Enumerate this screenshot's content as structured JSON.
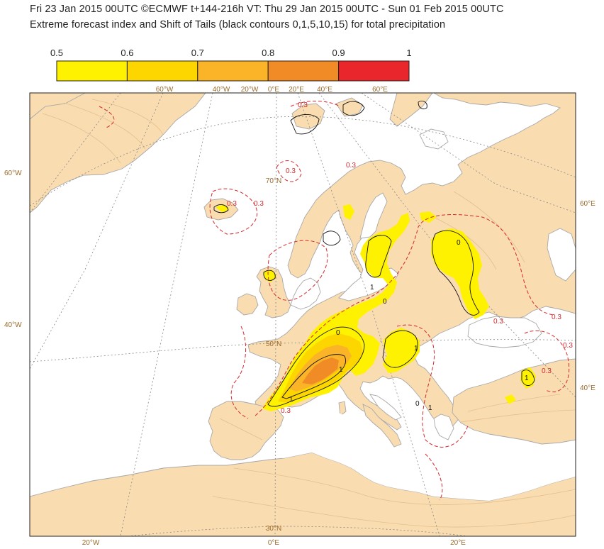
{
  "header": {
    "line1": "Fri 23 Jan 2015 00UTC ©ECMWF t+144-216h  VT: Thu 29 Jan 2015 00UTC - Sun 01 Feb 2015 00UTC",
    "line2": "Extreme forecast index and Shift of Tails (black contours 0,1,5,10,15) for total precipitation"
  },
  "legend": {
    "ticks": [
      "0.5",
      "0.6",
      "0.7",
      "0.8",
      "0.9",
      "1"
    ],
    "colors": [
      "#fff200",
      "#fdd600",
      "#fbb427",
      "#f18b26",
      "#e8262b"
    ]
  },
  "map": {
    "colors": {
      "land": "#f9dcb0",
      "sea": "#ffffff",
      "coast": "#a8a8a8",
      "relief": "#e3c08f",
      "graticule": "#888888",
      "eot_contour": "#d6282c",
      "sot_contour": "#111111"
    },
    "graticule_labels": {
      "top": [
        "60°W",
        "40°W",
        "20°W",
        "0°E",
        "20°E",
        "40°E",
        "60°E"
      ],
      "left": [
        "60°W",
        "40°W"
      ],
      "right": [
        "60°E",
        "40°E"
      ],
      "bottom": [
        "20°W",
        "0°E",
        "20°E"
      ],
      "inside": [
        "70°N",
        "50°N",
        "30°N"
      ]
    },
    "contour_labels": {
      "eot": [
        "0.3",
        "0.3",
        "0.3",
        "0.3",
        "0.3",
        "0.3",
        "0.3",
        "0.3",
        "0.3",
        "0.3"
      ],
      "sot": [
        "0",
        "0",
        "0",
        "1",
        "1",
        "1",
        "1",
        "1",
        "0",
        "1"
      ]
    }
  }
}
